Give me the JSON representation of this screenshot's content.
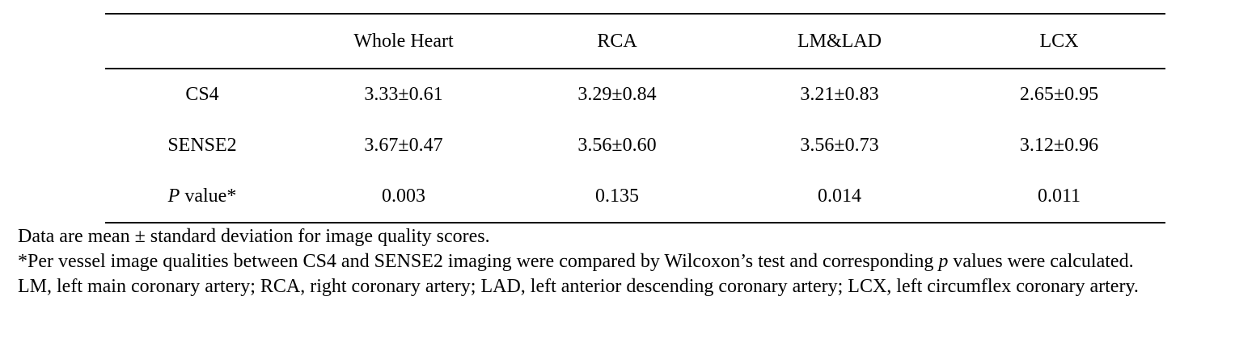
{
  "table": {
    "headers": [
      "",
      "Whole Heart",
      "RCA",
      "LM&LAD",
      "LCX"
    ],
    "rows": [
      {
        "label": "CS4",
        "values": [
          "3.33±0.61",
          "3.29±0.84",
          "3.21±0.83",
          "2.65±0.95"
        ]
      },
      {
        "label": "SENSE2",
        "values": [
          "3.67±0.47",
          "3.56±0.60",
          "3.56±0.73",
          "3.12±0.96"
        ]
      },
      {
        "label_italic": "P",
        "label_rest": " value*",
        "values": [
          "0.003",
          "0.135",
          "0.014",
          "0.011"
        ]
      }
    ]
  },
  "notes": {
    "line1": "Data are mean ± standard deviation for image quality scores.",
    "line2_pre": "*Per vessel image qualities between CS4 and SENSE2 imaging were compared by Wilcoxon’s test and corresponding ",
    "line2_italic": "p",
    "line2_post": " values were calculated.",
    "line3": "LM, left main coronary artery; RCA, right coronary artery; LAD, left anterior descending coronary artery; LCX, left circumflex coronary artery."
  }
}
